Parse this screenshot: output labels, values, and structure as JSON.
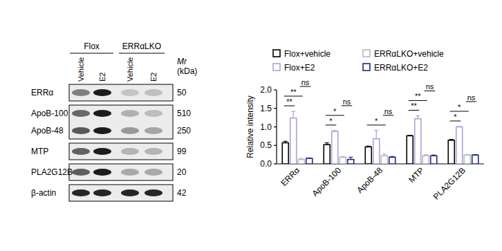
{
  "chart_data": {
    "type": "bar",
    "categories": [
      "ERRα",
      "ApoB-100",
      "ApoB-48",
      "MTP",
      "PLA2G12B"
    ],
    "series": [
      {
        "name": "Flox+vehicle",
        "color": "#000000",
        "values": [
          0.57,
          0.52,
          0.46,
          0.76,
          0.64
        ],
        "errors": [
          0.04,
          0.05,
          0.02,
          0.01,
          0.02
        ]
      },
      {
        "name": "Flox+E2",
        "color": "#a8a2dc",
        "values": [
          1.24,
          0.88,
          0.68,
          1.22,
          1.0
        ],
        "errors": [
          0.18,
          0.02,
          0.22,
          0.08,
          0.01
        ]
      },
      {
        "name": "ERRαLKO+vehicle",
        "color": "#b8b8b8",
        "values": [
          0.12,
          0.18,
          0.22,
          0.22,
          0.24
        ],
        "errors": [
          0.03,
          0.02,
          0.05,
          0.03,
          0.01
        ]
      },
      {
        "name": "ERRαLKO+E2",
        "color": "#1c2a80",
        "values": [
          0.15,
          0.12,
          0.18,
          0.22,
          0.24
        ],
        "errors": [
          0.01,
          0.06,
          0.02,
          0.02,
          0.01
        ]
      }
    ],
    "ylabel": "Relative intensity",
    "ylim": [
      0,
      2.0
    ],
    "yticks": [
      {
        "value": 0,
        "label": "0.0"
      },
      {
        "value": 0.5,
        "label": "0.5"
      },
      {
        "value": 1.0,
        "label": "1.0"
      },
      {
        "value": 1.5,
        "label": "1.5"
      },
      {
        "value": 2.0,
        "label": "2.0"
      }
    ],
    "legend": "top",
    "annotations": [
      {
        "category": "ERRα",
        "pair": [
          "Flox+vehicle",
          "Flox+E2"
        ],
        "label": "**"
      },
      {
        "category": "ERRα",
        "pair": [
          "Flox+vehicle",
          "ERRαLKO+vehicle"
        ],
        "label": "**"
      },
      {
        "category": "ERRα",
        "pair": [
          "ERRαLKO+vehicle",
          "ERRαLKO+E2"
        ],
        "label": "ns"
      },
      {
        "category": "ApoB-100",
        "pair": [
          "Flox+vehicle",
          "Flox+E2"
        ],
        "label": "*"
      },
      {
        "category": "ApoB-100",
        "pair": [
          "Flox+vehicle",
          "ERRαLKO+vehicle"
        ],
        "label": "*"
      },
      {
        "category": "ApoB-100",
        "pair": [
          "ERRαLKO+vehicle",
          "ERRαLKO+E2"
        ],
        "label": "ns"
      },
      {
        "category": "ApoB-48",
        "pair": [
          "Flox+vehicle",
          "ERRαLKO+vehicle"
        ],
        "label": "*"
      },
      {
        "category": "ApoB-48",
        "pair": [
          "ERRαLKO+vehicle",
          "ERRαLKO+E2"
        ],
        "label": "ns"
      },
      {
        "category": "MTP",
        "pair": [
          "Flox+vehicle",
          "Flox+E2"
        ],
        "label": "**"
      },
      {
        "category": "MTP",
        "pair": [
          "Flox+vehicle",
          "ERRαLKO+vehicle"
        ],
        "label": "**"
      },
      {
        "category": "MTP",
        "pair": [
          "ERRαLKO+vehicle",
          "ERRαLKO+E2"
        ],
        "label": "ns"
      },
      {
        "category": "PLA2G12B",
        "pair": [
          "Flox+vehicle",
          "Flox+E2"
        ],
        "label": "*"
      },
      {
        "category": "PLA2G12B",
        "pair": [
          "Flox+vehicle",
          "ERRαLKO+vehicle"
        ],
        "label": "*"
      },
      {
        "category": "PLA2G12B",
        "pair": [
          "ERRαLKO+vehicle",
          "ERRαLKO+E2"
        ],
        "label": "ns"
      }
    ]
  },
  "blot": {
    "groups": [
      {
        "label": "Flox",
        "lanes": [
          "Vehicle",
          "E2"
        ]
      },
      {
        "label": "ERRαLKO",
        "lanes": [
          "Vehicle",
          "E2"
        ]
      }
    ],
    "mr_header": "Mr",
    "mr_unit": "(kDa)",
    "panels": [
      {
        "rows": [
          {
            "label": "ERRα",
            "mr": 50
          }
        ]
      },
      {
        "rows": [
          {
            "label": "ApoB-100",
            "mr": 510
          },
          {
            "label": "ApoB-48",
            "mr": 250
          }
        ]
      },
      {
        "rows": [
          {
            "label": "MTP",
            "mr": 99
          }
        ]
      },
      {
        "rows": [
          {
            "label": "PLA2G12B",
            "mr": 20
          }
        ]
      },
      {
        "rows": [
          {
            "label": "β-actin",
            "mr": 42
          }
        ]
      }
    ]
  }
}
